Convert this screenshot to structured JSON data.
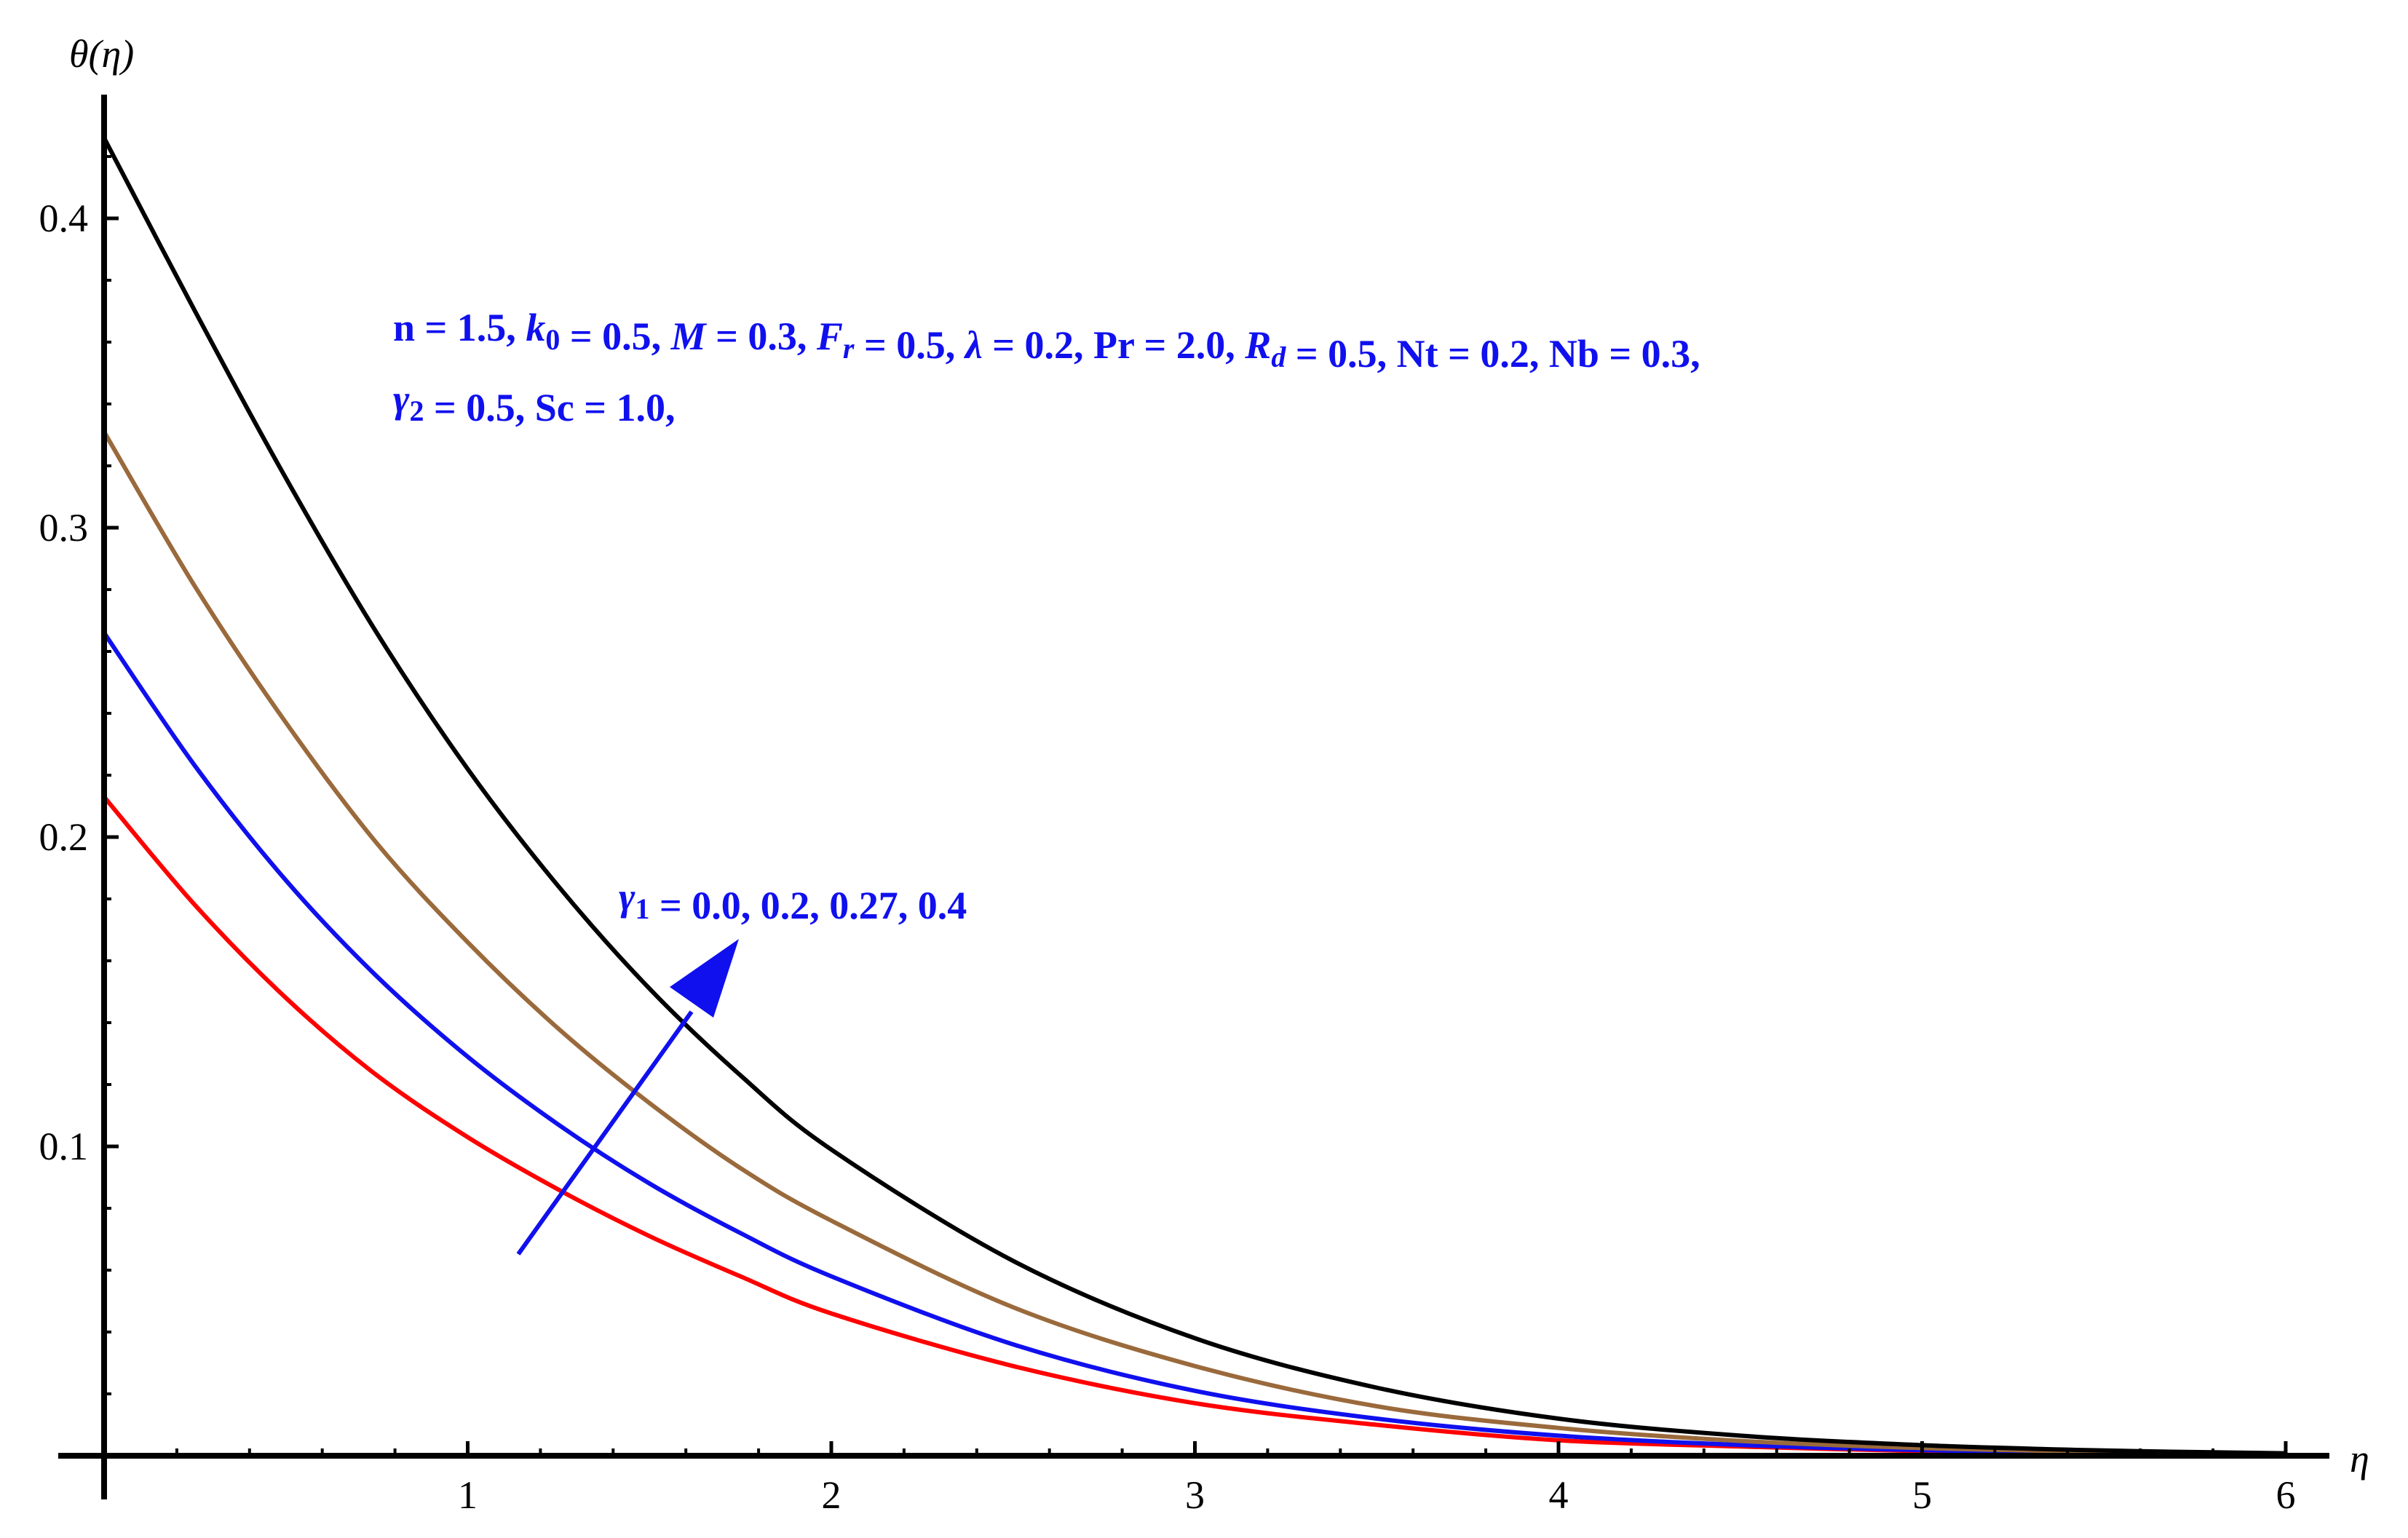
{
  "chart_data": {
    "type": "line",
    "xlabel": "η",
    "ylabel": "θ(η)",
    "xlim": [
      0,
      6.15
    ],
    "ylim": [
      0,
      0.44
    ],
    "x_ticks": [
      "1",
      "2",
      "3",
      "4",
      "5",
      "6"
    ],
    "y_ticks": [
      "0.1",
      "0.2",
      "0.3",
      "0.4"
    ],
    "grid": false,
    "legend": "none",
    "series": [
      {
        "color": "#ff0000",
        "x": [
          0,
          0.25,
          0.5,
          0.75,
          1,
          1.25,
          1.5,
          1.75,
          2,
          2.5,
          3,
          3.5,
          4,
          4.5,
          5,
          5.5,
          6
        ],
        "values": [
          0.213,
          0.178,
          0.148,
          0.123,
          0.103,
          0.086,
          0.071,
          0.058,
          0.046,
          0.029,
          0.017,
          0.01,
          0.005,
          0.003,
          0.0015,
          0.0008,
          0.0003
        ]
      },
      {
        "color": "#1010ee",
        "x": [
          0,
          0.25,
          0.5,
          0.75,
          1,
          1.25,
          1.5,
          1.75,
          2,
          2.5,
          3,
          3.5,
          4,
          4.5,
          5,
          5.5,
          6
        ],
        "values": [
          0.266,
          0.223,
          0.186,
          0.155,
          0.129,
          0.107,
          0.088,
          0.072,
          0.058,
          0.036,
          0.021,
          0.012,
          0.0065,
          0.0035,
          0.0018,
          0.0009,
          0.0004
        ]
      },
      {
        "color": "#9a6a3c",
        "x": [
          0,
          0.25,
          0.5,
          0.75,
          1,
          1.25,
          1.5,
          1.75,
          2,
          2.5,
          3,
          3.5,
          4,
          4.5,
          5,
          5.5,
          6
        ],
        "values": [
          0.331,
          0.281,
          0.237,
          0.198,
          0.166,
          0.138,
          0.114,
          0.093,
          0.076,
          0.048,
          0.029,
          0.016,
          0.009,
          0.0048,
          0.0025,
          0.0013,
          0.0006
        ]
      },
      {
        "color": "#000000",
        "x": [
          0,
          0.25,
          0.5,
          0.75,
          1,
          1.25,
          1.5,
          1.75,
          2,
          2.5,
          3,
          3.5,
          4,
          4.5,
          5,
          5.5,
          6
        ],
        "values": [
          0.426,
          0.37,
          0.316,
          0.266,
          0.222,
          0.184,
          0.151,
          0.123,
          0.099,
          0.063,
          0.038,
          0.022,
          0.012,
          0.0065,
          0.0034,
          0.0017,
          0.0008
        ]
      }
    ],
    "annotations": {
      "params_line1": [
        {
          "t": "n = 1.5, "
        },
        {
          "t": "k",
          "it": true
        },
        {
          "t": "0",
          "sub": true
        },
        {
          "t": " = 0.5, "
        },
        {
          "t": "M",
          "it": true
        },
        {
          "t": " = 0.3, "
        },
        {
          "t": "F",
          "it": true
        },
        {
          "t": "r",
          "it": true,
          "sub": true
        },
        {
          "t": " =  0.5, "
        },
        {
          "t": "λ",
          "it": true
        },
        {
          "t": " = 0.2, Pr = 2.0, "
        },
        {
          "t": "R",
          "it": true
        },
        {
          "t": "d",
          "it": true,
          "sub": true
        },
        {
          "t": " = 0.5, Nt = 0.2, Nb = 0.3,"
        }
      ],
      "params_line2": [
        {
          "t": "γ",
          "it": true
        },
        {
          "t": "2",
          "sub": true
        },
        {
          "t": " = 0.5, Sc = 1.0,"
        }
      ],
      "arrow_label": [
        {
          "t": "γ",
          "it": true
        },
        {
          "t": "1",
          "sub": true
        },
        {
          "t": " = 0.0, 0.2, 0.27, 0.4"
        }
      ],
      "arrow_color": "#1010ee"
    }
  }
}
